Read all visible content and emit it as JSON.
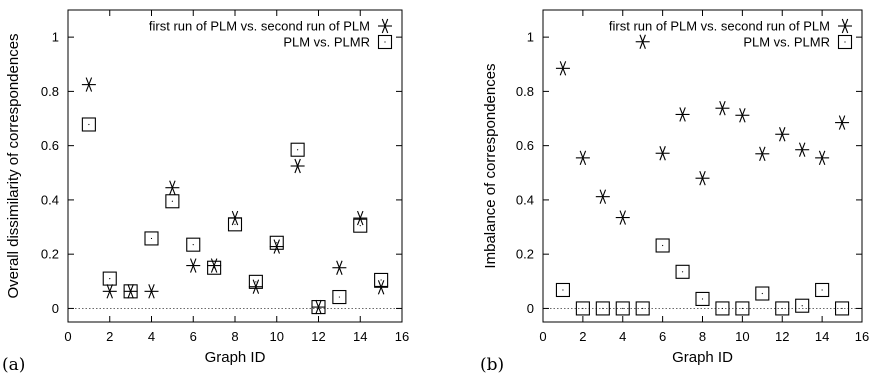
{
  "chart_data": [
    {
      "type": "scatter",
      "panel_label": "(a)",
      "xlabel": "Graph ID",
      "ylabel": "Overall dissimilarity of correspondences",
      "xlim": [
        0,
        16
      ],
      "ylim": [
        -0.05,
        1.1
      ],
      "xticks": [
        "0",
        "2",
        "4",
        "6",
        "8",
        "10",
        "12",
        "14",
        "16"
      ],
      "yticks": [
        "0",
        "0.2",
        "0.4",
        "0.6",
        "0.8",
        "1"
      ],
      "legend_position": "top-right",
      "series": [
        {
          "name": "first run of PLM vs. second run of PLM",
          "marker": "star",
          "x": [
            1,
            2,
            3,
            4,
            5,
            6,
            7,
            8,
            9,
            10,
            11,
            12,
            13,
            14,
            15
          ],
          "y": [
            0.825,
            0.063,
            0.063,
            0.063,
            0.445,
            0.158,
            0.158,
            0.333,
            0.08,
            0.228,
            0.525,
            0.005,
            0.15,
            0.333,
            0.078
          ]
        },
        {
          "name": "PLM vs. PLMR",
          "marker": "square",
          "x": [
            1,
            2,
            3,
            4,
            5,
            6,
            7,
            8,
            9,
            10,
            11,
            12,
            13,
            14,
            15
          ],
          "y": [
            0.678,
            0.11,
            0.063,
            0.258,
            0.395,
            0.235,
            0.15,
            0.31,
            0.098,
            0.242,
            0.585,
            0.005,
            0.042,
            0.305,
            0.105
          ]
        }
      ]
    },
    {
      "type": "scatter",
      "panel_label": "(b)",
      "xlabel": "Graph ID",
      "ylabel": "Imbalance of correspondences",
      "xlim": [
        0,
        16
      ],
      "ylim": [
        -0.05,
        1.1
      ],
      "xticks": [
        "0",
        "2",
        "4",
        "6",
        "8",
        "10",
        "12",
        "14",
        "16"
      ],
      "yticks": [
        "0",
        "0.2",
        "0.4",
        "0.6",
        "0.8",
        "1"
      ],
      "legend_position": "top-right",
      "series": [
        {
          "name": "first run of PLM vs. second run of PLM",
          "marker": "star",
          "x": [
            1,
            2,
            3,
            4,
            5,
            6,
            7,
            8,
            9,
            10,
            11,
            12,
            13,
            14,
            15
          ],
          "y": [
            0.885,
            0.555,
            0.412,
            0.335,
            0.983,
            0.572,
            0.715,
            0.48,
            0.738,
            0.712,
            0.57,
            0.642,
            0.585,
            0.555,
            0.685
          ]
        },
        {
          "name": "PLM vs. PLMR",
          "marker": "square",
          "x": [
            1,
            2,
            3,
            4,
            5,
            6,
            7,
            8,
            9,
            10,
            11,
            12,
            13,
            14,
            15
          ],
          "y": [
            0.068,
            0.0,
            0.0,
            0.0,
            0.0,
            0.232,
            0.135,
            0.035,
            0.0,
            0.0,
            0.055,
            0.0,
            0.01,
            0.068,
            0.0
          ]
        }
      ]
    }
  ]
}
